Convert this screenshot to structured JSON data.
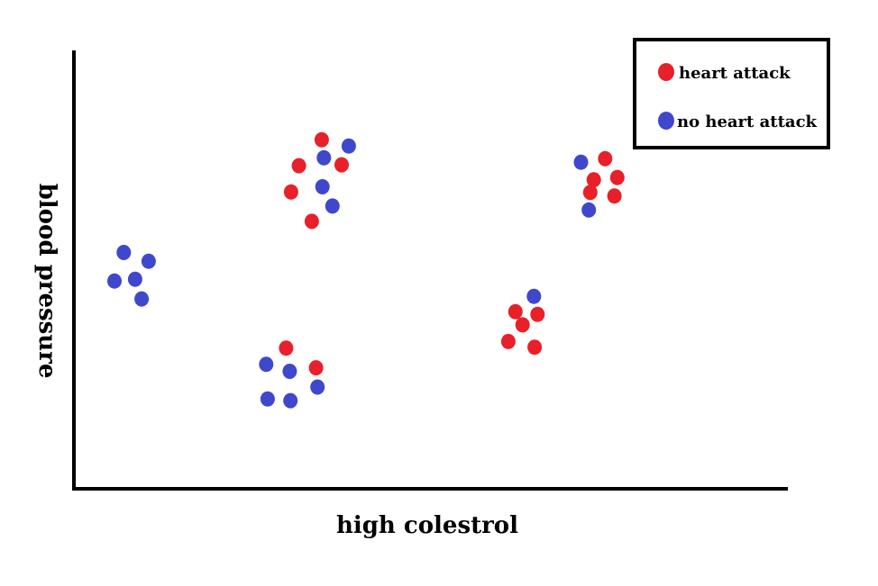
{
  "chart_data": {
    "type": "scatter",
    "xlabel": "high colestrol",
    "ylabel": "blood pressure",
    "xlim": [
      0,
      100
    ],
    "ylim": [
      0,
      100
    ],
    "grid": false,
    "legend_position": "top-right",
    "series": [
      {
        "name": "heart attack",
        "color": "#e8202a",
        "points": [
          [
            34.8,
            79.6
          ],
          [
            31.6,
            73.7
          ],
          [
            37.6,
            73.9
          ],
          [
            30.5,
            67.7
          ],
          [
            33.4,
            61.0
          ],
          [
            29.8,
            32.1
          ],
          [
            34.0,
            27.6
          ],
          [
            62.0,
            40.4
          ],
          [
            65.1,
            39.8
          ],
          [
            63.0,
            37.4
          ],
          [
            61.0,
            33.6
          ],
          [
            64.7,
            32.3
          ],
          [
            74.6,
            75.3
          ],
          [
            73.0,
            70.5
          ],
          [
            76.3,
            71.0
          ],
          [
            72.5,
            67.6
          ],
          [
            75.9,
            66.8
          ]
        ]
      },
      {
        "name": "no heart attack",
        "color": "#3f48cc",
        "points": [
          [
            38.6,
            78.2
          ],
          [
            35.1,
            75.5
          ],
          [
            34.9,
            68.9
          ],
          [
            36.3,
            64.5
          ],
          [
            7.0,
            53.9
          ],
          [
            10.5,
            51.9
          ],
          [
            5.7,
            47.4
          ],
          [
            8.6,
            47.8
          ],
          [
            9.5,
            43.3
          ],
          [
            27.0,
            28.4
          ],
          [
            30.3,
            26.8
          ],
          [
            34.2,
            23.2
          ],
          [
            27.2,
            20.5
          ],
          [
            30.4,
            20.1
          ],
          [
            64.6,
            43.9
          ],
          [
            71.2,
            74.5
          ],
          [
            72.3,
            63.6
          ]
        ]
      }
    ]
  }
}
